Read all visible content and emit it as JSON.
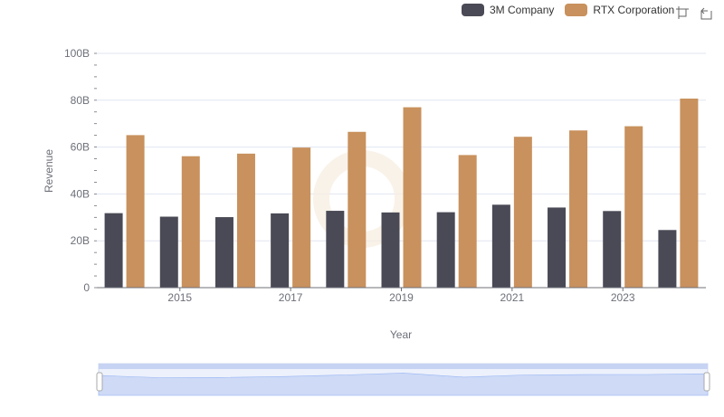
{
  "legend": [
    {
      "name": "3M Company",
      "color": "#4a4a56"
    },
    {
      "name": "RTX Corporation",
      "color": "#c8915d"
    }
  ],
  "toolbox": {
    "zoom_icon": "zoom-select-icon",
    "restore_icon": "restore-icon"
  },
  "chart_data": {
    "type": "bar",
    "xlabel": "Year",
    "ylabel": "Revenue",
    "ylim": [
      0,
      100
    ],
    "y_ticks": [
      "0",
      "20B",
      "40B",
      "60B",
      "80B",
      "100B"
    ],
    "x": [
      2014,
      2015,
      2016,
      2017,
      2018,
      2019,
      2020,
      2021,
      2022,
      2023,
      2024
    ],
    "x_tick_labels": [
      "2015",
      "2017",
      "2019",
      "2021",
      "2023"
    ],
    "grid": true,
    "legend_position": "top-right",
    "series": [
      {
        "name": "3M Company",
        "color": "#4a4a56",
        "values": [
          31.8,
          30.3,
          30.1,
          31.7,
          32.8,
          32.1,
          32.2,
          35.4,
          34.2,
          32.7,
          24.6
        ]
      },
      {
        "name": "RTX Corporation",
        "color": "#c8915d",
        "values": [
          65.1,
          56.1,
          57.2,
          59.8,
          66.5,
          77.0,
          56.6,
          64.4,
          67.1,
          68.9,
          80.7
        ]
      }
    ],
    "data_zoom": {
      "start": 0,
      "end": 100
    }
  }
}
